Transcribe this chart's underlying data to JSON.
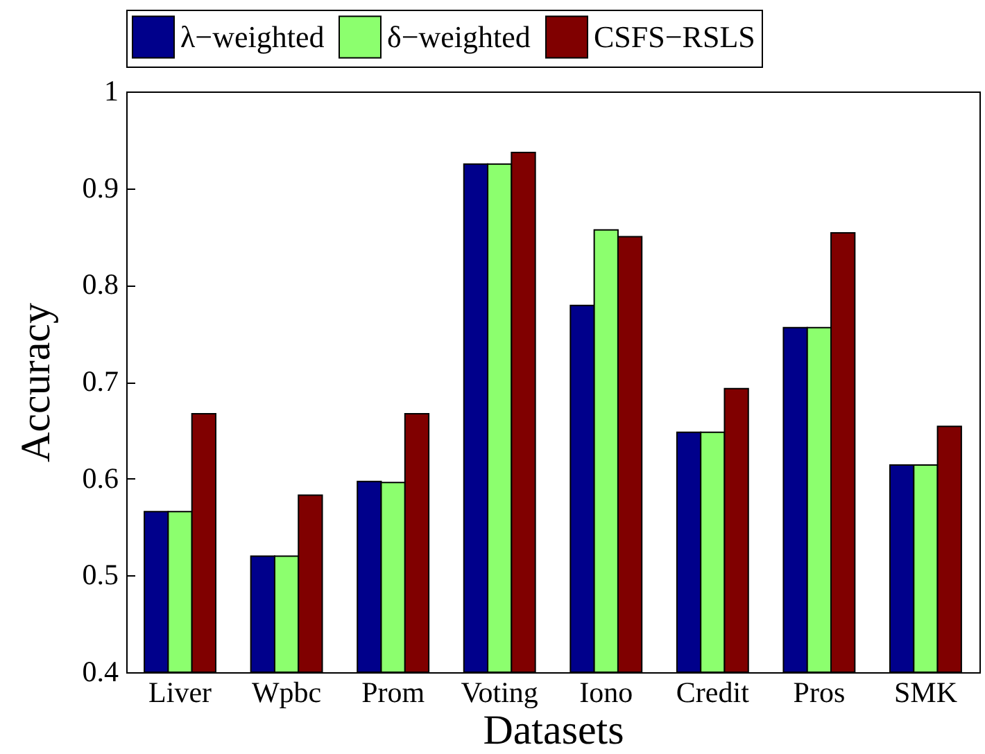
{
  "chart_data": {
    "type": "bar",
    "xlabel": "Datasets",
    "ylabel": "Accuracy",
    "categories": [
      "Liver",
      "Wpbc",
      "Prom",
      "Voting",
      "Iono",
      "Credit",
      "Pros",
      "SMK"
    ],
    "series": [
      {
        "name": "λ−weighted",
        "color": "#00008b",
        "values": [
          0.566,
          0.52,
          0.597,
          0.925,
          0.779,
          0.648,
          0.756,
          0.614
        ]
      },
      {
        "name": "δ−weighted",
        "color": "#8cff6e",
        "values": [
          0.566,
          0.52,
          0.596,
          0.925,
          0.857,
          0.648,
          0.756,
          0.614
        ]
      },
      {
        "name": "CSFS−RSLS",
        "color": "#800000",
        "values": [
          0.667,
          0.583,
          0.667,
          0.937,
          0.85,
          0.693,
          0.854,
          0.654
        ]
      }
    ],
    "ylim": [
      0.4,
      1
    ],
    "yticks": [
      0.4,
      0.5,
      0.6,
      0.7,
      0.8,
      0.9,
      {
        "value": 1,
        "label": "1"
      }
    ],
    "legend": "top",
    "grid": false
  }
}
